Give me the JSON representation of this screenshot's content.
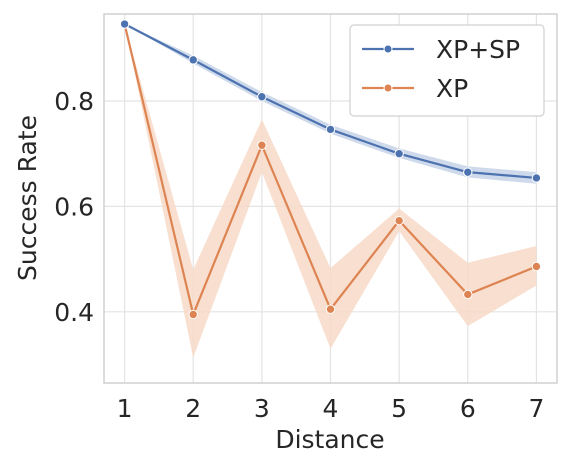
{
  "chart_data": {
    "type": "line",
    "title": "",
    "xlabel": "Distance",
    "ylabel": "Success Rate",
    "x": [
      1,
      2,
      3,
      4,
      5,
      6,
      7
    ],
    "xlim": [
      0.7,
      7.3
    ],
    "ylim": [
      0.265,
      0.965
    ],
    "xticks": [
      1,
      2,
      3,
      4,
      5,
      6,
      7
    ],
    "yticks": [
      0.4,
      0.6,
      0.8
    ],
    "ytick_labels": [
      "0.4",
      "0.6",
      "0.8"
    ],
    "grid": true,
    "legend_position": "top-right",
    "series": [
      {
        "name": "XP+SP",
        "color": "#4c72b0",
        "band_color": "#c5d3e8",
        "values": [
          0.946,
          0.878,
          0.808,
          0.746,
          0.7,
          0.665,
          0.654
        ],
        "ci_lower": [
          0.946,
          0.871,
          0.8,
          0.738,
          0.692,
          0.655,
          0.643
        ],
        "ci_upper": [
          0.946,
          0.886,
          0.817,
          0.755,
          0.71,
          0.676,
          0.665
        ]
      },
      {
        "name": "XP",
        "color": "#dd8452",
        "band_color": "#f7d9c7",
        "values": [
          0.946,
          0.395,
          0.716,
          0.405,
          0.573,
          0.433,
          0.486
        ],
        "ci_lower": [
          0.946,
          0.313,
          0.665,
          0.33,
          0.553,
          0.373,
          0.45
        ],
        "ci_upper": [
          0.946,
          0.48,
          0.765,
          0.483,
          0.596,
          0.493,
          0.525
        ]
      }
    ]
  }
}
